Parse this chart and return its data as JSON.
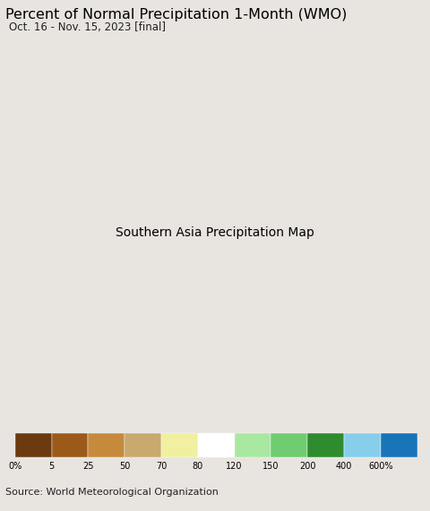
{
  "title": "Percent of Normal Precipitation 1-Month (WMO)",
  "subtitle": "Oct. 16 - Nov. 15, 2023 [final]",
  "source": "Source: World Meteorological Organization",
  "colorbar_labels": [
    "0%",
    "5",
    "25",
    "50",
    "70",
    "80",
    "120",
    "150",
    "200",
    "400",
    "600%"
  ],
  "colorbar_colors": [
    "#6B3A10",
    "#9B5A1A",
    "#C68A3C",
    "#C8A96E",
    "#F0F0A0",
    "#FFFFFF",
    "#A8E8A0",
    "#70CC70",
    "#2E8B2E",
    "#87CEEB",
    "#1874B8"
  ],
  "background_color": "#E8E4E0",
  "ocean_color": "#AAD4E8",
  "land_color": "#E8E4E0",
  "border_color": "#000000",
  "state_border_color": "#888888",
  "title_fontsize": 11.5,
  "subtitle_fontsize": 8.5,
  "source_fontsize": 8,
  "map_extent": [
    56,
    107,
    4,
    43
  ],
  "fig_width": 4.8,
  "fig_height": 5.71,
  "dpi": 100
}
